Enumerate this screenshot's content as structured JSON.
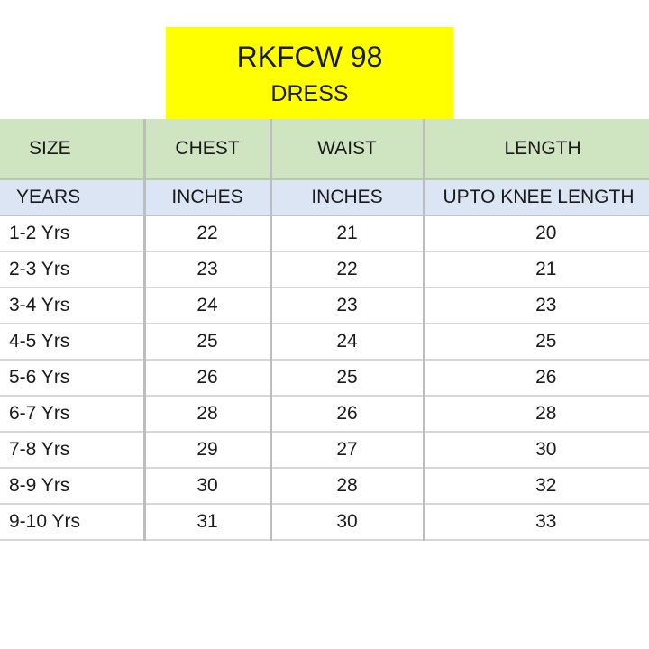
{
  "title": {
    "code": "RKFCW 98",
    "product": "DRESS"
  },
  "headers": [
    "SIZE",
    "CHEST",
    "WAIST",
    "LENGTH"
  ],
  "units": [
    "YEARS",
    "INCHES",
    "INCHES",
    "UPTO KNEE LENGTH"
  ],
  "rows": [
    [
      "1-2 Yrs",
      "22",
      "21",
      "20"
    ],
    [
      "2-3 Yrs",
      "23",
      "22",
      "21"
    ],
    [
      "3-4 Yrs",
      "24",
      "23",
      "23"
    ],
    [
      "4-5 Yrs",
      "25",
      "24",
      "25"
    ],
    [
      "5-6 Yrs",
      "26",
      "25",
      "26"
    ],
    [
      "6-7 Yrs",
      "28",
      "26",
      "28"
    ],
    [
      "7-8 Yrs",
      "29",
      "27",
      "30"
    ],
    [
      "8-9 Yrs",
      "30",
      "28",
      "32"
    ],
    [
      "9-10 Yrs",
      "31",
      "30",
      "33"
    ]
  ],
  "colors": {
    "title_bg": "#ffff00",
    "header_bg": "#cfe5c1",
    "unit_bg": "#dbe5f4"
  }
}
